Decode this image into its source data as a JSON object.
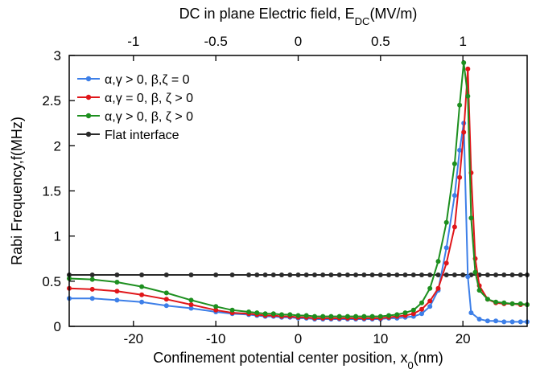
{
  "chart_data": {
    "type": "line",
    "title": "",
    "xlabel": "Confinement potential center position, x",
    "xlabel_sub": "0",
    "xlabel_unit": "(nm)",
    "ylabel": "Rabi Frequency,f(MHz)",
    "top_xlabel": "DC in plane Electric field, E",
    "top_xlabel_sub": "DC",
    "top_xlabel_unit": "(MV/m)",
    "xlim": [
      -27.8,
      27.8
    ],
    "ylim": [
      0,
      3
    ],
    "top_xlim": [
      -1.39,
      1.39
    ],
    "xticks": [
      -20,
      -10,
      0,
      10,
      20
    ],
    "xtick_labels": [
      "-20",
      "-10",
      "0",
      "10",
      "20"
    ],
    "yticks": [
      0,
      0.5,
      1,
      1.5,
      2,
      2.5,
      3
    ],
    "ytick_labels": [
      "0",
      "0.5",
      "1",
      "1.5",
      "2",
      "2.5",
      "3"
    ],
    "top_xticks": [
      -1,
      -0.5,
      0,
      0.5,
      1
    ],
    "top_xtick_labels": [
      "-1",
      "-0.5",
      "0",
      "0.5",
      "1"
    ],
    "grid": false,
    "legend_position": "top-left",
    "series": [
      {
        "name": "α,γ > 0, β,ζ = 0",
        "color": "#3d7fe8",
        "x": [
          -27.8,
          -25,
          -22,
          -19,
          -16,
          -13,
          -10,
          -8,
          -6,
          -5,
          -4,
          -3,
          -2,
          -1,
          0,
          1,
          2,
          3,
          4,
          5,
          6,
          7,
          8,
          9,
          10,
          11,
          12,
          13,
          14,
          15,
          16,
          17,
          18,
          19,
          19.6,
          20.1,
          20.6,
          21,
          22,
          23,
          24,
          25,
          26,
          27,
          27.8
        ],
        "y": [
          0.31,
          0.31,
          0.29,
          0.27,
          0.23,
          0.2,
          0.16,
          0.14,
          0.13,
          0.12,
          0.11,
          0.11,
          0.1,
          0.1,
          0.09,
          0.09,
          0.08,
          0.08,
          0.08,
          0.08,
          0.08,
          0.08,
          0.08,
          0.08,
          0.08,
          0.09,
          0.09,
          0.1,
          0.11,
          0.14,
          0.22,
          0.4,
          0.87,
          1.45,
          1.95,
          2.25,
          0.55,
          0.15,
          0.08,
          0.06,
          0.06,
          0.05,
          0.05,
          0.05,
          0.05
        ]
      },
      {
        "name": "α,γ = 0, β, ζ > 0",
        "color": "#e0161a",
        "x": [
          -27.8,
          -25,
          -22,
          -19,
          -16,
          -13,
          -10,
          -8,
          -6,
          -5,
          -4,
          -3,
          -2,
          -1,
          0,
          1,
          2,
          3,
          4,
          5,
          6,
          7,
          8,
          9,
          10,
          11,
          12,
          13,
          14,
          15,
          16,
          17,
          18,
          19,
          19.6,
          20.1,
          20.6,
          21,
          21.5,
          22,
          23,
          24,
          25,
          26,
          27,
          27.8
        ],
        "y": [
          0.42,
          0.41,
          0.39,
          0.35,
          0.3,
          0.24,
          0.18,
          0.15,
          0.14,
          0.13,
          0.12,
          0.12,
          0.11,
          0.11,
          0.1,
          0.1,
          0.09,
          0.09,
          0.09,
          0.09,
          0.09,
          0.09,
          0.09,
          0.09,
          0.09,
          0.1,
          0.11,
          0.12,
          0.14,
          0.19,
          0.28,
          0.42,
          0.7,
          1.1,
          1.65,
          2.15,
          2.85,
          1.7,
          0.75,
          0.45,
          0.3,
          0.26,
          0.25,
          0.25,
          0.24,
          0.24
        ]
      },
      {
        "name": "α,γ > 0, β, ζ > 0",
        "color": "#1d8f1f",
        "x": [
          -27.8,
          -25,
          -22,
          -19,
          -16,
          -13,
          -10,
          -8,
          -6,
          -5,
          -4,
          -3,
          -2,
          -1,
          0,
          1,
          2,
          3,
          4,
          5,
          6,
          7,
          8,
          9,
          10,
          11,
          12,
          13,
          14,
          15,
          16,
          17,
          18,
          19,
          19.6,
          20.1,
          20.6,
          21,
          21.5,
          22,
          23,
          24,
          25,
          26,
          27,
          27.8
        ],
        "y": [
          0.53,
          0.52,
          0.49,
          0.44,
          0.37,
          0.29,
          0.22,
          0.18,
          0.16,
          0.15,
          0.14,
          0.14,
          0.13,
          0.13,
          0.12,
          0.12,
          0.11,
          0.11,
          0.11,
          0.11,
          0.11,
          0.11,
          0.11,
          0.11,
          0.11,
          0.12,
          0.13,
          0.15,
          0.18,
          0.26,
          0.42,
          0.72,
          1.15,
          1.8,
          2.45,
          2.92,
          2.55,
          1.2,
          0.6,
          0.4,
          0.3,
          0.27,
          0.26,
          0.25,
          0.25,
          0.24
        ]
      },
      {
        "name": "Flat interface",
        "color": "#2a2a2a",
        "x": [
          -27.8,
          -25,
          -22,
          -19,
          -16,
          -13,
          -10,
          -8,
          -6,
          -5,
          -4,
          -3,
          -2,
          -1,
          0,
          1,
          2,
          3,
          4,
          5,
          6,
          7,
          8,
          9,
          10,
          11,
          12,
          13,
          14,
          15,
          16,
          17,
          18,
          19,
          20,
          21,
          22,
          23,
          24,
          25,
          26,
          27,
          27.8
        ],
        "y": [
          0.57,
          0.57,
          0.57,
          0.57,
          0.57,
          0.57,
          0.57,
          0.57,
          0.57,
          0.57,
          0.57,
          0.57,
          0.57,
          0.57,
          0.57,
          0.57,
          0.57,
          0.57,
          0.57,
          0.57,
          0.57,
          0.57,
          0.57,
          0.57,
          0.57,
          0.57,
          0.57,
          0.57,
          0.57,
          0.57,
          0.57,
          0.57,
          0.57,
          0.57,
          0.57,
          0.57,
          0.57,
          0.57,
          0.57,
          0.57,
          0.57,
          0.57,
          0.57
        ]
      }
    ]
  }
}
